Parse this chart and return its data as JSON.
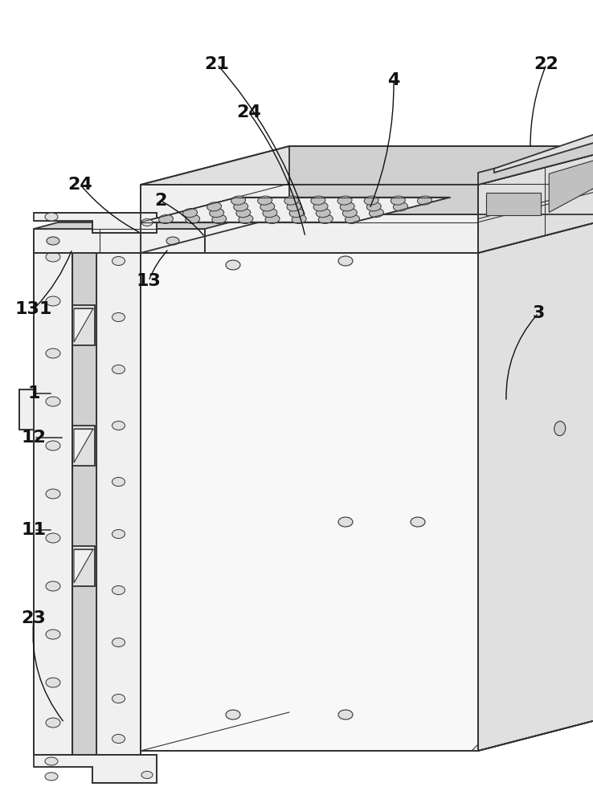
{
  "bg_color": "#ffffff",
  "line_color": "#333333",
  "lw": 1.3,
  "tlw": 0.8,
  "figsize": [
    7.38,
    10.0
  ],
  "dpi": 100,
  "face_light": "#f0f0f0",
  "face_mid": "#e0e0e0",
  "face_dark": "#d0d0d0",
  "face_darker": "#c0c0c0",
  "face_white": "#f8f8f8",
  "perf_fill": "#e8e8e8",
  "hole_fill": "#b8b8b8"
}
